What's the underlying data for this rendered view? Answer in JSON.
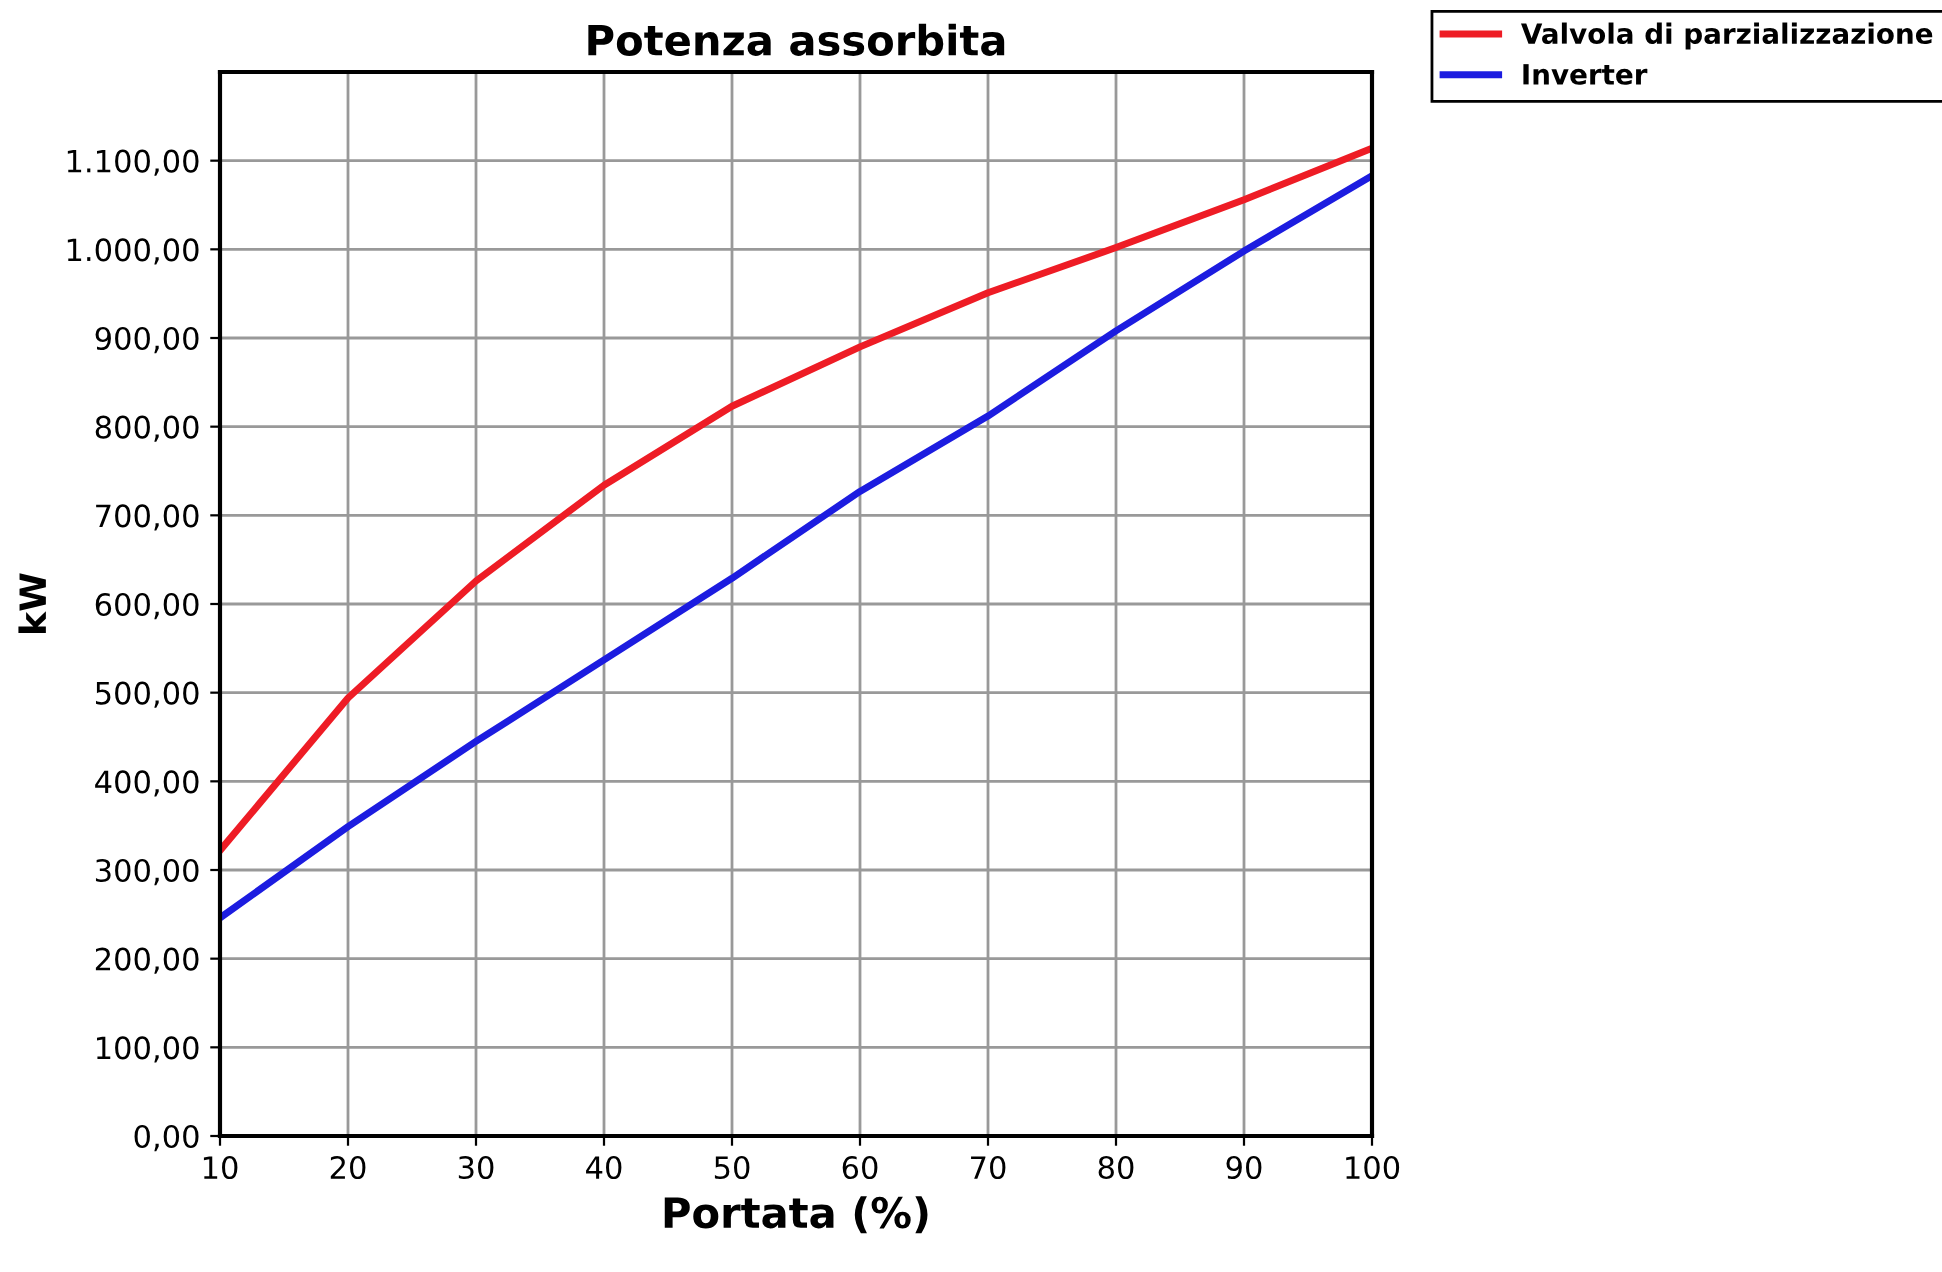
{
  "chart_data": {
    "type": "line",
    "title": "Potenza assorbita",
    "xlabel": "Portata (%)",
    "ylabel": "kW",
    "x": [
      10,
      20,
      30,
      40,
      50,
      60,
      70,
      80,
      90,
      100
    ],
    "series": [
      {
        "name": "Valvola di parzializzazione",
        "color": "#ee1c25",
        "values": [
          322,
          494,
          626,
          734,
          823,
          890,
          951,
          1002,
          1056,
          1114
        ]
      },
      {
        "name": "Inverter",
        "color": "#1c1ce0",
        "values": [
          246,
          349,
          445,
          537,
          629,
          727,
          812,
          908,
          998,
          1083
        ]
      }
    ],
    "xlim": [
      10,
      100
    ],
    "xticks": [
      10,
      20,
      30,
      40,
      50,
      60,
      70,
      80,
      90,
      100
    ],
    "ylim": [
      0,
      1200
    ],
    "yticks": [
      {
        "value": 0,
        "label": "0,00"
      },
      {
        "value": 100,
        "label": "100,00"
      },
      {
        "value": 200,
        "label": "200,00"
      },
      {
        "value": 300,
        "label": "300,00"
      },
      {
        "value": 400,
        "label": "400,00"
      },
      {
        "value": 500,
        "label": "500,00"
      },
      {
        "value": 600,
        "label": "600,00"
      },
      {
        "value": 700,
        "label": "700,00"
      },
      {
        "value": 800,
        "label": "800,00"
      },
      {
        "value": 900,
        "label": "900,00"
      },
      {
        "value": 1000,
        "label": "1.000,00"
      },
      {
        "value": 1100,
        "label": "1.100,00"
      }
    ],
    "grid": true,
    "legend": "top right",
    "marker": "none",
    "line_style": "solid"
  }
}
